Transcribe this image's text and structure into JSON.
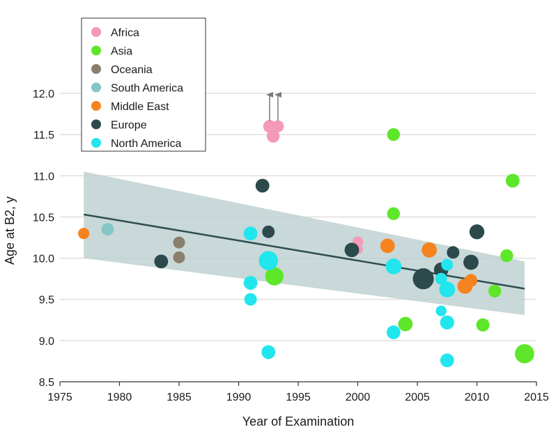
{
  "chart_data": {
    "type": "scatter",
    "xlabel": "Year of Examination",
    "ylabel": "Age at B2, y",
    "xlim": [
      1975,
      2015
    ],
    "ylim": [
      8.5,
      12.0
    ],
    "xticks": [
      1975,
      1980,
      1985,
      1990,
      1995,
      2000,
      2005,
      2010,
      2015
    ],
    "yticks": [
      "8.5",
      "9.0",
      "9.5",
      "10.0",
      "10.5",
      "11.0",
      "11.5",
      "12.0"
    ],
    "grid": "horizontal",
    "legend_position": "top-left",
    "colors": {
      "Africa": "#f49ab8",
      "Asia": "#5ee62a",
      "Oceania": "#8a7e6c",
      "South America": "#84c6c6",
      "Middle East": "#f5831f",
      "Europe": "#2c4a4c",
      "North America": "#22e6ee",
      "trend": "#2d4e50",
      "band": "#bfd1d1",
      "grid": "#d0d0d0",
      "arrow": "#7a7a7a"
    },
    "legend": [
      "Africa",
      "Asia",
      "Oceania",
      "South America",
      "Middle East",
      "Europe",
      "North America"
    ],
    "trend": {
      "x": [
        1977,
        2014
      ],
      "y": [
        10.53,
        9.63
      ]
    },
    "band": {
      "x": [
        1977,
        2014
      ],
      "upper": [
        11.05,
        9.96
      ],
      "lower": [
        10.0,
        9.31
      ]
    },
    "arrows": [
      {
        "x": 1992.6,
        "y": 11.6
      },
      {
        "x": 1993.3,
        "y": 11.6
      }
    ],
    "series": [
      {
        "name": "Africa",
        "points": [
          {
            "x": 1992.6,
            "y": 11.6,
            "size": 2
          },
          {
            "x": 1992.9,
            "y": 11.48,
            "size": 2
          },
          {
            "x": 1993.3,
            "y": 11.6,
            "size": 1.5
          },
          {
            "x": 2000.0,
            "y": 10.2,
            "size": 1
          },
          {
            "x": 2000.0,
            "y": 10.11,
            "size": 0.8
          }
        ]
      },
      {
        "name": "Asia",
        "points": [
          {
            "x": 2003.0,
            "y": 11.5,
            "size": 2
          },
          {
            "x": 2003.0,
            "y": 10.54,
            "size": 2
          },
          {
            "x": 1993.0,
            "y": 9.78,
            "size": 6
          },
          {
            "x": 2004.0,
            "y": 9.2,
            "size": 3
          },
          {
            "x": 2010.5,
            "y": 9.19,
            "size": 2.2
          },
          {
            "x": 2011.5,
            "y": 9.6,
            "size": 2
          },
          {
            "x": 2012.5,
            "y": 10.03,
            "size": 2
          },
          {
            "x": 2013.0,
            "y": 10.94,
            "size": 2.5
          },
          {
            "x": 2014.0,
            "y": 8.84,
            "size": 7
          }
        ]
      },
      {
        "name": "Oceania",
        "points": [
          {
            "x": 1985.0,
            "y": 10.19,
            "size": 1.5
          },
          {
            "x": 1985.0,
            "y": 10.01,
            "size": 1.5
          }
        ]
      },
      {
        "name": "South America",
        "points": [
          {
            "x": 1979.0,
            "y": 10.35,
            "size": 1.8
          }
        ]
      },
      {
        "name": "Middle East",
        "points": [
          {
            "x": 1977.0,
            "y": 10.3,
            "size": 1.2
          },
          {
            "x": 2002.5,
            "y": 10.15,
            "size": 3
          },
          {
            "x": 2006.0,
            "y": 10.1,
            "size": 3.5
          },
          {
            "x": 2009.5,
            "y": 9.73,
            "size": 2
          },
          {
            "x": 2009.0,
            "y": 9.66,
            "size": 3.5
          }
        ]
      },
      {
        "name": "Europe",
        "points": [
          {
            "x": 1983.5,
            "y": 9.96,
            "size": 2.5
          },
          {
            "x": 1992.0,
            "y": 10.88,
            "size": 2.5
          },
          {
            "x": 1992.5,
            "y": 10.32,
            "size": 1.8
          },
          {
            "x": 1999.5,
            "y": 10.1,
            "size": 3
          },
          {
            "x": 2005.5,
            "y": 9.75,
            "size": 9
          },
          {
            "x": 2007.0,
            "y": 9.86,
            "size": 3
          },
          {
            "x": 2008.0,
            "y": 10.07,
            "size": 1.8
          },
          {
            "x": 2009.5,
            "y": 9.95,
            "size": 3.5
          },
          {
            "x": 2010.0,
            "y": 10.32,
            "size": 3.3
          }
        ]
      },
      {
        "name": "North America",
        "points": [
          {
            "x": 1991.0,
            "y": 10.3,
            "size": 2.5
          },
          {
            "x": 1991.0,
            "y": 9.7,
            "size": 2.5
          },
          {
            "x": 1991.0,
            "y": 9.5,
            "size": 1.8
          },
          {
            "x": 1992.5,
            "y": 9.97,
            "size": 7
          },
          {
            "x": 1992.5,
            "y": 8.86,
            "size": 2.5
          },
          {
            "x": 2003.0,
            "y": 9.9,
            "size": 4
          },
          {
            "x": 2003.0,
            "y": 9.1,
            "size": 2.5
          },
          {
            "x": 2007.0,
            "y": 9.75,
            "size": 1.5
          },
          {
            "x": 2007.5,
            "y": 9.92,
            "size": 1.5
          },
          {
            "x": 2007.5,
            "y": 9.62,
            "size": 4
          },
          {
            "x": 2007.5,
            "y": 9.22,
            "size": 2.7
          },
          {
            "x": 2007.0,
            "y": 9.36,
            "size": 1
          },
          {
            "x": 2007.5,
            "y": 8.76,
            "size": 2.5
          }
        ]
      }
    ]
  }
}
